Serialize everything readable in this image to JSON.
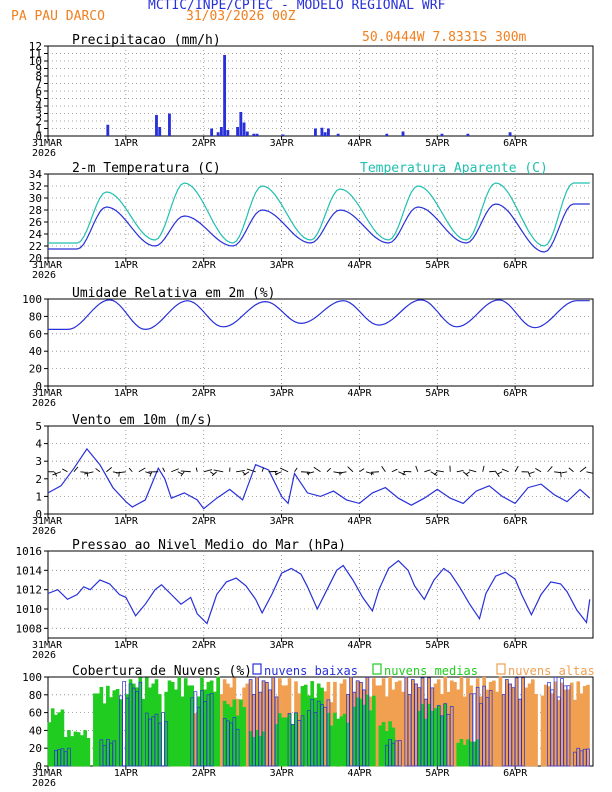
{
  "header": {
    "title": "MCTIC/INPE/CPTEC - MODELO REGIONAL WRF",
    "location": "PA PAU DARCO",
    "run": "31/03/2026 00Z",
    "coords": "50.0444W 7.8331S 300m"
  },
  "colors": {
    "blue": "#2830d8",
    "cyan": "#20c0b0",
    "green": "#20cc20",
    "orange": "#f0a050",
    "title_blue": "#2830d8",
    "title_orange": "#f08020"
  },
  "day_labels": [
    "31MAR",
    "1APR",
    "2APR",
    "3APR",
    "4APR",
    "5APR",
    "6APR"
  ],
  "first_date_year": "2026",
  "chart_data": [
    {
      "id": "precip",
      "type": "bar",
      "title": "Precipitacao (mm/h)",
      "ylim": [
        0,
        12
      ],
      "yticks": [
        "0",
        "1",
        "2",
        "3",
        "4",
        "5",
        "6",
        "7",
        "8",
        "9",
        "10",
        "11",
        "12"
      ],
      "x_hours": [
        18,
        33,
        34,
        37,
        50,
        52,
        53,
        54,
        55,
        58,
        59,
        60,
        61,
        63,
        64,
        72,
        82,
        84,
        85,
        86,
        89,
        104,
        109,
        121,
        129,
        142
      ],
      "values": [
        1.5,
        2.8,
        1.2,
        3.0,
        1.0,
        0.5,
        1.2,
        10.8,
        0.8,
        1.2,
        3.2,
        1.8,
        0.6,
        0.3,
        0.3,
        0.2,
        1.0,
        1.1,
        0.5,
        1.0,
        0.3,
        0.3,
        0.6,
        0.3,
        0.3,
        0.5
      ],
      "series_color": "#2830d8"
    },
    {
      "id": "temp",
      "type": "line",
      "title": "2-m Temperatura (C)",
      "title2": "Temperatura Aparente (C)",
      "ylim": [
        20,
        34
      ],
      "yticks": [
        "20",
        "22",
        "24",
        "26",
        "28",
        "30",
        "32",
        "34"
      ],
      "series": [
        {
          "name": "2-m Temperatura (C)",
          "color": "#2830d8",
          "tmin": [
            21.5,
            22.0,
            22.0,
            22.5,
            22.5,
            22.5,
            21.0
          ],
          "tmax": [
            28.5,
            27.0,
            28.0,
            28.0,
            28.5,
            29.0,
            29.0
          ]
        },
        {
          "name": "Temperatura Aparente (C)",
          "color": "#20c0b0",
          "tmin": [
            22.5,
            23.0,
            22.5,
            23.0,
            23.0,
            23.0,
            22.0
          ],
          "tmax": [
            31.0,
            32.5,
            32.0,
            31.5,
            32.0,
            32.5,
            32.5
          ]
        }
      ]
    },
    {
      "id": "rh",
      "type": "line",
      "title": "Umidade Relativa em 2m (%)",
      "ylim": [
        0,
        100
      ],
      "yticks": [
        "0",
        "20",
        "40",
        "60",
        "80",
        "100"
      ],
      "series": [
        {
          "name": "UR",
          "color": "#2830d8",
          "daymin": [
            65,
            65,
            68,
            72,
            70,
            68,
            67
          ],
          "nightmax": [
            99,
            98,
            97,
            98,
            99,
            99,
            98
          ]
        }
      ]
    },
    {
      "id": "wind",
      "type": "line",
      "title": "Vento em 10m (m/s)",
      "ylim": [
        0,
        5
      ],
      "yticks": [
        "0",
        "1",
        "2",
        "3",
        "4",
        "5"
      ],
      "series": [
        {
          "name": "Vento 10m",
          "color": "#2830d8",
          "x_hours": [
            0,
            4,
            8,
            12,
            16,
            20,
            24,
            26,
            30,
            34,
            36,
            38,
            42,
            46,
            48,
            52,
            56,
            60,
            64,
            68,
            72,
            74,
            76,
            80,
            84,
            88,
            92,
            96,
            100,
            104,
            108,
            112,
            116,
            120,
            124,
            128,
            132,
            136,
            140,
            144,
            148,
            152,
            156,
            160,
            164,
            167
          ],
          "values": [
            1.2,
            1.6,
            2.6,
            3.7,
            2.8,
            1.5,
            0.7,
            0.4,
            0.8,
            2.6,
            2.0,
            0.9,
            1.2,
            0.8,
            0.3,
            0.9,
            1.4,
            0.8,
            2.8,
            2.5,
            1.0,
            0.6,
            2.3,
            1.2,
            1.0,
            1.3,
            0.8,
            0.6,
            1.2,
            1.5,
            0.9,
            0.5,
            0.9,
            1.4,
            0.9,
            0.6,
            1.3,
            1.6,
            1.0,
            0.6,
            1.5,
            1.7,
            1.1,
            0.7,
            1.4,
            0.9
          ]
        }
      ]
    },
    {
      "id": "mslp",
      "type": "line",
      "title": "Pressao ao Nivel Medio do Mar (hPa)",
      "ylim": [
        1007,
        1016
      ],
      "yticks": [
        "1008",
        "1010",
        "1012",
        "1014",
        "1016"
      ],
      "series": [
        {
          "name": "PNMM",
          "color": "#2830d8",
          "x_hours": [
            0,
            3,
            6,
            9,
            11,
            13,
            16,
            19,
            22,
            24,
            27,
            30,
            33,
            35,
            38,
            41,
            44,
            46,
            49,
            52,
            55,
            58,
            61,
            64,
            66,
            69,
            72,
            75,
            78,
            80,
            83,
            86,
            89,
            91,
            94,
            97,
            100,
            102,
            105,
            108,
            111,
            113,
            116,
            119,
            122,
            124,
            127,
            130,
            133,
            135,
            138,
            141,
            144,
            146,
            149,
            152,
            155,
            158,
            160,
            163,
            166,
            167
          ],
          "values": [
            1011.6,
            1012.0,
            1011.0,
            1011.5,
            1012.3,
            1012.0,
            1013.0,
            1012.6,
            1011.5,
            1011.2,
            1009.3,
            1010.5,
            1012.0,
            1012.5,
            1011.5,
            1010.5,
            1011.2,
            1009.5,
            1008.5,
            1011.5,
            1012.8,
            1013.2,
            1012.4,
            1011.0,
            1009.6,
            1011.5,
            1013.7,
            1014.2,
            1013.6,
            1012.3,
            1010.0,
            1012.0,
            1014.0,
            1014.5,
            1013.0,
            1011.2,
            1009.8,
            1012.0,
            1014.2,
            1015.0,
            1014.0,
            1012.4,
            1011.0,
            1013.0,
            1014.2,
            1013.7,
            1012.2,
            1010.5,
            1009.0,
            1011.6,
            1013.4,
            1013.8,
            1013.1,
            1011.5,
            1009.4,
            1011.5,
            1012.8,
            1012.6,
            1011.8,
            1009.9,
            1008.6,
            1011.0
          ]
        }
      ]
    },
    {
      "id": "clouds",
      "type": "bar",
      "title": "Cobertura de Nuvens (%)",
      "legend": [
        "nuvens baixas",
        "nuvens medias",
        "nuvens altas"
      ],
      "ylim": [
        0,
        100
      ],
      "yticks": [
        "0",
        "20",
        "40",
        "60",
        "80",
        "100"
      ],
      "layers": [
        {
          "name": "nuvens altas",
          "color": "#f0a050",
          "segments": [
            [
              38,
              46,
              60
            ],
            [
              48,
              58,
              100
            ],
            [
              60,
              74,
              100
            ],
            [
              76,
              88,
              95
            ],
            [
              90,
              130,
              100
            ],
            [
              132,
              150,
              100
            ],
            [
              152,
              166,
              95
            ]
          ]
        },
        {
          "name": "nuvens medias",
          "color": "#20cc20",
          "segments": [
            [
              0,
              4,
              65
            ],
            [
              5,
              12,
              40
            ],
            [
              14,
              22,
              90
            ],
            [
              24,
              34,
              100
            ],
            [
              36,
              44,
              100
            ],
            [
              46,
              52,
              100
            ],
            [
              54,
              60,
              75
            ],
            [
              62,
              66,
              40
            ],
            [
              70,
              76,
              60
            ],
            [
              78,
              84,
              95
            ],
            [
              86,
              92,
              60
            ],
            [
              94,
              100,
              80
            ],
            [
              102,
              106,
              50
            ],
            [
              114,
              122,
              70
            ],
            [
              126,
              132,
              30
            ]
          ]
        },
        {
          "name": "nuvens baixas",
          "color": "#2830d8",
          "segments": [
            [
              2,
              6,
              20
            ],
            [
              16,
              20,
              30
            ],
            [
              22,
              28,
              95
            ],
            [
              30,
              36,
              60
            ],
            [
              44,
              50,
              85
            ],
            [
              54,
              58,
              55
            ],
            [
              62,
              70,
              100
            ],
            [
              74,
              78,
              60
            ],
            [
              80,
              86,
              75
            ],
            [
              92,
              98,
              100
            ],
            [
              104,
              108,
              30
            ],
            [
              110,
              118,
              100
            ],
            [
              120,
              124,
              70
            ],
            [
              130,
              136,
              90
            ],
            [
              140,
              146,
              100
            ],
            [
              154,
              160,
              100
            ],
            [
              162,
              166,
              20
            ]
          ]
        }
      ]
    }
  ]
}
